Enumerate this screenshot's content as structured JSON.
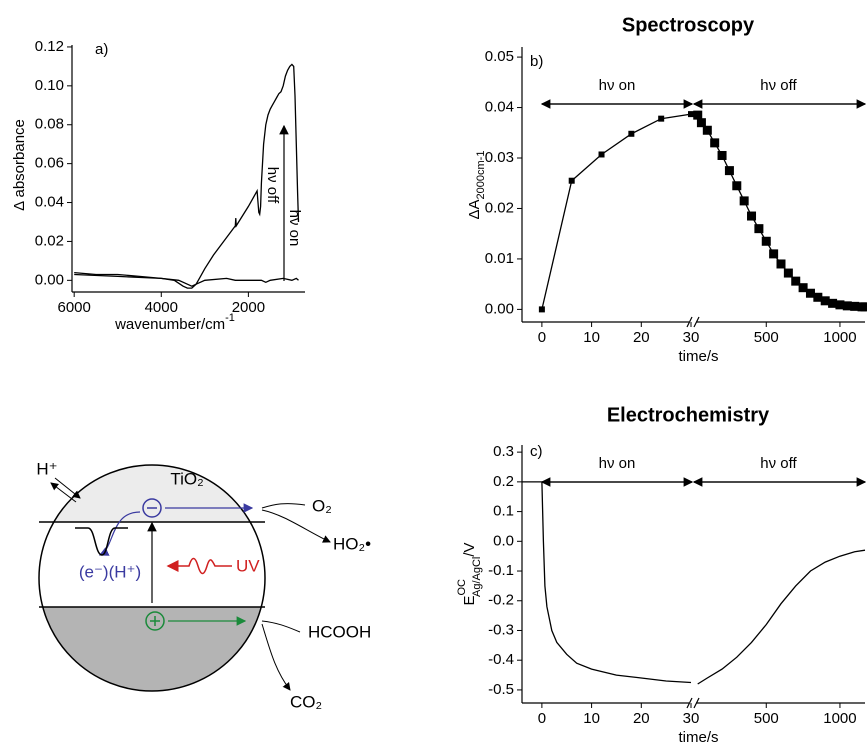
{
  "chart_data": [
    {
      "type": "line",
      "label": "a)",
      "xlabel": "wavenumber/cm",
      "xlabel_sup": "-1",
      "ylabel": "Δ absorbance",
      "xlim": [
        6050,
        700
      ],
      "ylim": [
        -0.006,
        0.121
      ],
      "xticks": [
        6000,
        4000,
        2000
      ],
      "yticks": [
        {
          "value": 0,
          "label": "0.00"
        },
        0.02,
        0.04,
        0.06,
        0.08,
        {
          "value": 0.1,
          "label": "0.10"
        },
        0.12
      ],
      "annotations": [
        "hν off",
        "hν on"
      ],
      "series": [
        {
          "color": "#000000",
          "x": [
            6000,
            5500,
            5000,
            4500,
            4000,
            3700,
            3500,
            3400,
            3300,
            3200,
            3100,
            3000,
            2800,
            2500,
            2300,
            2290,
            2280,
            2000,
            1850,
            1800,
            1780,
            1760,
            1740,
            1720,
            1700,
            1650,
            1600,
            1550,
            1500,
            1450,
            1400,
            1350,
            1300,
            1250,
            1200,
            1150,
            1100,
            1050,
            1000,
            960,
            930,
            900,
            870,
            850
          ],
          "values": [
            0.004,
            0.003,
            0.003,
            0.002,
            0.001,
            0.0,
            -0.003,
            -0.004,
            -0.004,
            -0.002,
            0.002,
            0.006,
            0.013,
            0.022,
            0.028,
            0.032,
            0.028,
            0.038,
            0.044,
            0.046,
            0.04,
            0.035,
            0.034,
            0.038,
            0.05,
            0.07,
            0.08,
            0.085,
            0.088,
            0.09,
            0.092,
            0.094,
            0.096,
            0.097,
            0.1,
            0.105,
            0.108,
            0.11,
            0.111,
            0.11,
            0.095,
            0.07,
            0.045,
            0.03
          ]
        },
        {
          "color": "#000000",
          "x": [
            6000,
            5000,
            4000,
            3600,
            3400,
            3300,
            3200,
            3000,
            2500,
            2300,
            2000,
            1700,
            1600,
            1500,
            1200,
            1000,
            900,
            850
          ],
          "values": [
            0.003,
            0.002,
            0.001,
            0.0,
            -0.002,
            -0.003,
            -0.002,
            0.0,
            0.001,
            0.0,
            0.0,
            0.0,
            -0.001,
            0.0,
            0.001,
            0.0,
            0.001,
            0.0
          ]
        }
      ]
    },
    {
      "type": "scatter",
      "title": "Spectroscopy",
      "label": "b)",
      "xlabel": "time/s",
      "ylabel": "ΔA",
      "ylabel_sub": "2000cm-1",
      "xlim": [
        -4,
        1170
      ],
      "xbreak": 30,
      "ylim": [
        -0.0025,
        0.052
      ],
      "xticks": [
        0,
        10,
        20,
        30,
        500,
        1000
      ],
      "yticks": [
        {
          "value": 0,
          "label": "0.00"
        },
        0.01,
        0.02,
        0.03,
        0.04,
        0.05
      ],
      "annotations": [
        "hν on",
        "hν off"
      ],
      "series": [
        {
          "color": "#000000",
          "line": true,
          "marker_size": 6,
          "x": [
            0,
            6,
            12,
            18,
            24,
            30
          ],
          "values": [
            0.0,
            0.0255,
            0.0307,
            0.0348,
            0.0378,
            0.0387
          ]
        },
        {
          "color": "#000000",
          "line": true,
          "marker_size": 9,
          "x": [
            35,
            60,
            100,
            150,
            200,
            250,
            300,
            350,
            400,
            450,
            500,
            550,
            600,
            650,
            700,
            750,
            800,
            850,
            900,
            950,
            1000,
            1050,
            1100,
            1150,
            1170
          ],
          "values": [
            0.0385,
            0.037,
            0.0355,
            0.033,
            0.0305,
            0.0275,
            0.0245,
            0.0215,
            0.0185,
            0.016,
            0.0135,
            0.011,
            0.009,
            0.0072,
            0.0056,
            0.0043,
            0.0032,
            0.0024,
            0.0017,
            0.0012,
            0.0009,
            0.0007,
            0.0006,
            0.0005,
            0.0005
          ]
        }
      ]
    },
    {
      "type": "line",
      "title": "Electrochemistry",
      "label": "c)",
      "xlabel": "time/s",
      "ylabel": "E",
      "ylabel_sup": "OC",
      "ylabel_sub": "Ag/AgCl",
      "ylabel_tail": "/V",
      "xlim": [
        -4,
        1170
      ],
      "xbreak": 30,
      "ylim": [
        -0.544,
        0.324
      ],
      "xticks": [
        0,
        10,
        20,
        30,
        500,
        1000
      ],
      "yticks": [
        -0.5,
        -0.4,
        -0.3,
        -0.2,
        -0.1,
        {
          "value": 0,
          "label": "0.0"
        },
        0.1,
        0.2,
        0.3
      ],
      "annotations": [
        "hν on",
        "hν off"
      ],
      "series": [
        {
          "color": "#000000",
          "x": [
            -4,
            -0.5,
            0,
            0.3,
            0.6,
            1,
            2,
            3,
            5,
            7,
            10,
            15,
            20,
            25,
            30
          ],
          "values": [
            0.2,
            0.2,
            0.2,
            0.0,
            -0.15,
            -0.22,
            -0.3,
            -0.34,
            -0.38,
            -0.41,
            -0.43,
            -0.45,
            -0.46,
            -0.47,
            -0.475
          ]
        },
        {
          "color": "#000000",
          "x": [
            35,
            100,
            200,
            300,
            400,
            500,
            600,
            700,
            800,
            900,
            1000,
            1100,
            1170
          ],
          "values": [
            -0.48,
            -0.46,
            -0.43,
            -0.39,
            -0.34,
            -0.28,
            -0.21,
            -0.15,
            -0.1,
            -0.07,
            -0.05,
            -0.035,
            -0.03
          ]
        }
      ]
    }
  ],
  "diagram": {
    "labels": {
      "tio2": "TiO₂",
      "h_plus": "H⁺",
      "o2": "O₂",
      "ho2": "HO₂•",
      "electron_proton": "(e⁻)(H⁺)",
      "uv": "UV",
      "hcooh": "HCOOH",
      "co2": "CO₂"
    }
  }
}
